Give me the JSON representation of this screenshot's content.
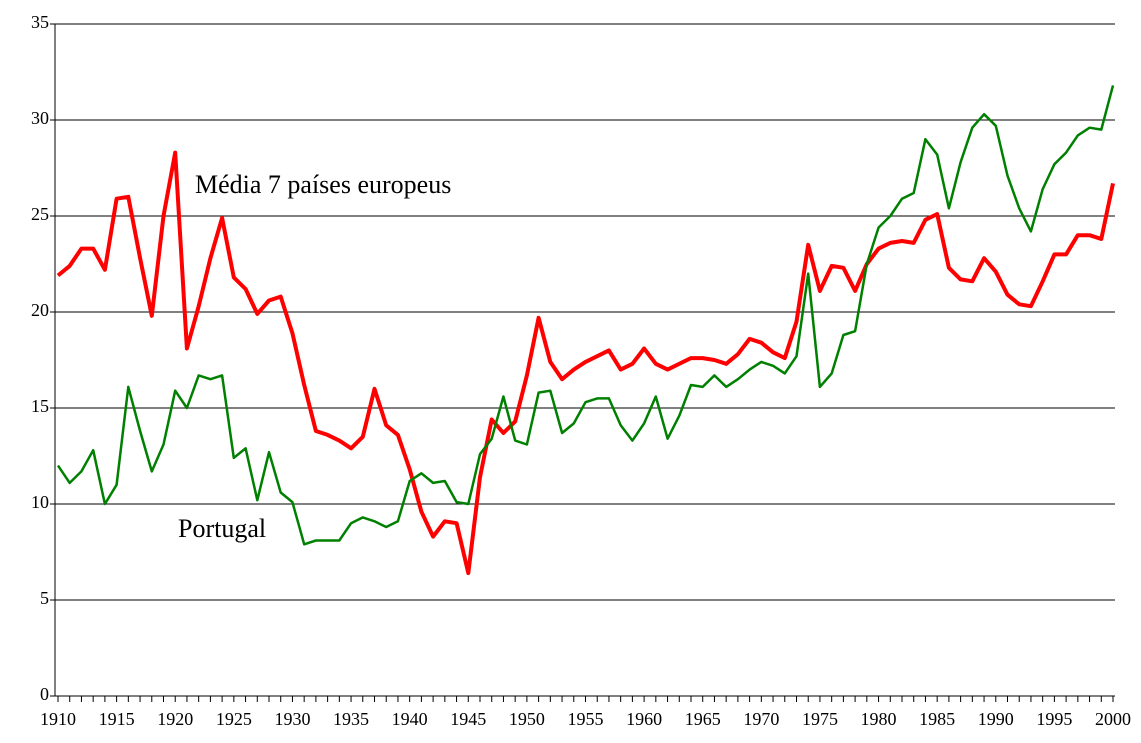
{
  "chart_data": {
    "type": "line",
    "x": [
      1910,
      1911,
      1912,
      1913,
      1914,
      1915,
      1916,
      1917,
      1918,
      1919,
      1920,
      1921,
      1922,
      1923,
      1924,
      1925,
      1926,
      1927,
      1928,
      1929,
      1930,
      1931,
      1932,
      1933,
      1934,
      1935,
      1936,
      1937,
      1938,
      1939,
      1940,
      1941,
      1942,
      1943,
      1944,
      1945,
      1946,
      1947,
      1948,
      1949,
      1950,
      1951,
      1952,
      1953,
      1954,
      1955,
      1956,
      1957,
      1958,
      1959,
      1960,
      1961,
      1962,
      1963,
      1964,
      1965,
      1966,
      1967,
      1968,
      1969,
      1970,
      1971,
      1972,
      1973,
      1974,
      1975,
      1976,
      1977,
      1978,
      1979,
      1980,
      1981,
      1982,
      1983,
      1984,
      1985,
      1986,
      1987,
      1988,
      1989,
      1990,
      1991,
      1992,
      1993,
      1994,
      1995,
      1996,
      1997,
      1998,
      1999,
      2000
    ],
    "series": [
      {
        "name": "Média 7 países europeus",
        "color": "#ff0000",
        "values": [
          21.9,
          22.4,
          23.3,
          23.3,
          22.2,
          25.9,
          26.0,
          22.8,
          19.8,
          25.0,
          28.3,
          18.1,
          20.3,
          22.8,
          24.9,
          21.8,
          21.2,
          19.9,
          20.6,
          20.8,
          18.9,
          16.2,
          13.8,
          13.6,
          13.3,
          12.9,
          13.5,
          16.0,
          14.1,
          13.6,
          11.8,
          9.6,
          8.3,
          9.1,
          9.0,
          6.4,
          11.4,
          14.4,
          13.7,
          14.3,
          16.7,
          19.7,
          17.4,
          16.5,
          17.0,
          17.4,
          17.7,
          18.0,
          17.0,
          17.3,
          18.1,
          17.3,
          17.0,
          17.3,
          17.6,
          17.6,
          17.5,
          17.3,
          17.8,
          18.6,
          18.4,
          17.9,
          17.6,
          19.5,
          23.5,
          21.1,
          22.4,
          22.3,
          21.1,
          22.5,
          23.3,
          23.6,
          23.7,
          23.6,
          24.8,
          25.1,
          22.3,
          21.7,
          21.6,
          22.8,
          22.1,
          20.9,
          20.4,
          20.3,
          21.6,
          23.0,
          23.0,
          24.0,
          24.0,
          23.8,
          26.7
        ]
      },
      {
        "name": "Portugal",
        "color": "#008000",
        "values": [
          12.0,
          11.1,
          11.7,
          12.8,
          10.0,
          11.0,
          16.1,
          13.8,
          11.7,
          13.1,
          15.9,
          15.0,
          16.7,
          16.5,
          16.7,
          12.4,
          12.9,
          10.2,
          12.7,
          10.6,
          10.1,
          7.9,
          8.1,
          8.1,
          8.1,
          9.0,
          9.3,
          9.1,
          8.8,
          9.1,
          11.2,
          11.6,
          11.1,
          11.2,
          10.1,
          10.0,
          12.6,
          13.4,
          15.6,
          13.3,
          13.1,
          15.8,
          15.9,
          13.7,
          14.2,
          15.3,
          15.5,
          15.5,
          14.1,
          13.3,
          14.2,
          15.6,
          13.4,
          14.6,
          16.2,
          16.1,
          16.7,
          16.1,
          16.5,
          17.0,
          17.4,
          17.2,
          16.8,
          17.7,
          22.0,
          16.1,
          16.8,
          18.8,
          19.0,
          22.5,
          24.4,
          25.0,
          25.9,
          26.2,
          29.0,
          28.2,
          25.4,
          27.8,
          29.6,
          30.3,
          29.7,
          27.1,
          25.4,
          24.2,
          26.4,
          27.7,
          28.3,
          29.2,
          29.6,
          29.5,
          31.8
        ]
      }
    ],
    "xlim": [
      1910,
      2000
    ],
    "xticks": [
      1910,
      1915,
      1920,
      1925,
      1930,
      1935,
      1940,
      1945,
      1950,
      1955,
      1960,
      1965,
      1970,
      1975,
      1980,
      1985,
      1990,
      1995,
      2000
    ],
    "ylim": [
      0,
      35
    ],
    "yticks": [
      0,
      5,
      10,
      15,
      20,
      25,
      30,
      35
    ],
    "grid": true
  }
}
